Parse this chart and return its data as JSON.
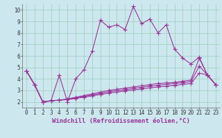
{
  "xlabel": "Windchill (Refroidissement éolien,°C)",
  "bg_color": "#cce8ee",
  "grid_color": "#99ccbb",
  "line_color": "#993399",
  "xlim": [
    -0.5,
    23.5
  ],
  "ylim": [
    1.5,
    10.5
  ],
  "xticks": [
    0,
    1,
    2,
    3,
    4,
    5,
    6,
    7,
    8,
    9,
    10,
    11,
    12,
    13,
    14,
    15,
    16,
    17,
    18,
    19,
    20,
    21,
    22,
    23
  ],
  "yticks": [
    2,
    3,
    4,
    5,
    6,
    7,
    8,
    9,
    10
  ],
  "series": [
    [
      4.7,
      3.5,
      2.0,
      2.1,
      4.3,
      2.0,
      4.0,
      4.8,
      6.4,
      9.1,
      8.5,
      8.7,
      8.3,
      10.3,
      8.8,
      9.2,
      8.0,
      8.7,
      6.6,
      5.8,
      5.3,
      5.9,
      4.3,
      3.5
    ],
    [
      4.7,
      3.5,
      2.0,
      2.1,
      2.15,
      2.25,
      2.4,
      2.55,
      2.7,
      2.85,
      3.0,
      3.1,
      3.2,
      3.3,
      3.4,
      3.5,
      3.6,
      3.65,
      3.7,
      3.8,
      3.9,
      5.8,
      4.35,
      3.5
    ],
    [
      4.7,
      3.5,
      2.0,
      2.1,
      2.15,
      2.25,
      2.35,
      2.48,
      2.6,
      2.75,
      2.88,
      2.98,
      3.07,
      3.17,
      3.27,
      3.37,
      3.45,
      3.52,
      3.6,
      3.68,
      3.76,
      5.1,
      4.35,
      3.5
    ],
    [
      4.7,
      3.5,
      2.0,
      2.1,
      2.15,
      2.2,
      2.3,
      2.42,
      2.52,
      2.65,
      2.76,
      2.86,
      2.95,
      3.04,
      3.13,
      3.22,
      3.3,
      3.37,
      3.44,
      3.52,
      3.6,
      4.5,
      4.35,
      3.5
    ]
  ],
  "marker": "+",
  "markersize": 4,
  "linewidth": 0.8,
  "xlabel_fontsize": 6.5,
  "tick_fontsize": 5.5
}
